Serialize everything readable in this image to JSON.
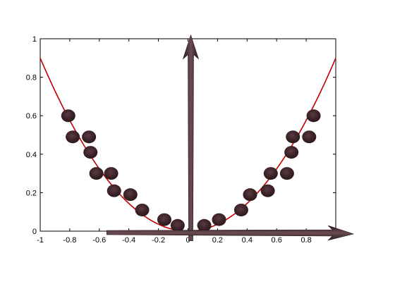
{
  "chart_data": {
    "type": "scatter",
    "title": "",
    "xlabel": "",
    "ylabel": "",
    "xlim": [
      -1,
      1
    ],
    "ylim": [
      0,
      1
    ],
    "x_ticks": [
      "-1",
      "-0.8",
      "-0.6",
      "-0.4",
      "-0.2",
      "0",
      "0.2",
      "0.4",
      "0.6",
      "0.8"
    ],
    "x_tick_values": [
      -1,
      -0.8,
      -0.6,
      -0.4,
      -0.2,
      0,
      0.2,
      0.4,
      0.6,
      0.8
    ],
    "y_ticks": [
      "0",
      "0.2",
      "0.4",
      "0.6",
      "0.8",
      "1"
    ],
    "y_tick_values": [
      0,
      0.2,
      0.4,
      0.6,
      0.8,
      1
    ],
    "grid": false,
    "series": [
      {
        "kind": "scatter",
        "color": "#3a2228",
        "points": [
          [
            -0.81,
            0.6
          ],
          [
            -0.78,
            0.49
          ],
          [
            -0.67,
            0.49
          ],
          [
            -0.66,
            0.41
          ],
          [
            -0.62,
            0.3
          ],
          [
            -0.52,
            0.3
          ],
          [
            -0.5,
            0.21
          ],
          [
            -0.39,
            0.19
          ],
          [
            -0.31,
            0.11
          ],
          [
            -0.16,
            0.06
          ],
          [
            -0.07,
            0.03
          ],
          [
            0.11,
            0.03
          ],
          [
            0.21,
            0.06
          ],
          [
            0.36,
            0.11
          ],
          [
            0.42,
            0.19
          ],
          [
            0.54,
            0.21
          ],
          [
            0.56,
            0.3
          ],
          [
            0.67,
            0.3
          ],
          [
            0.7,
            0.41
          ],
          [
            0.71,
            0.49
          ],
          [
            0.82,
            0.49
          ],
          [
            0.85,
            0.6
          ]
        ]
      },
      {
        "kind": "line",
        "color": "#c00000",
        "function": "0.9*x^2",
        "x_range": [
          -1,
          1
        ]
      }
    ],
    "overlay_arrows": {
      "color": "#4a3035",
      "vertical": {
        "x": 0,
        "y_from": -0.05,
        "y_to": 1.02
      },
      "horizontal": {
        "y": 0,
        "x_from": -0.55,
        "x_to": 1.12
      }
    }
  }
}
